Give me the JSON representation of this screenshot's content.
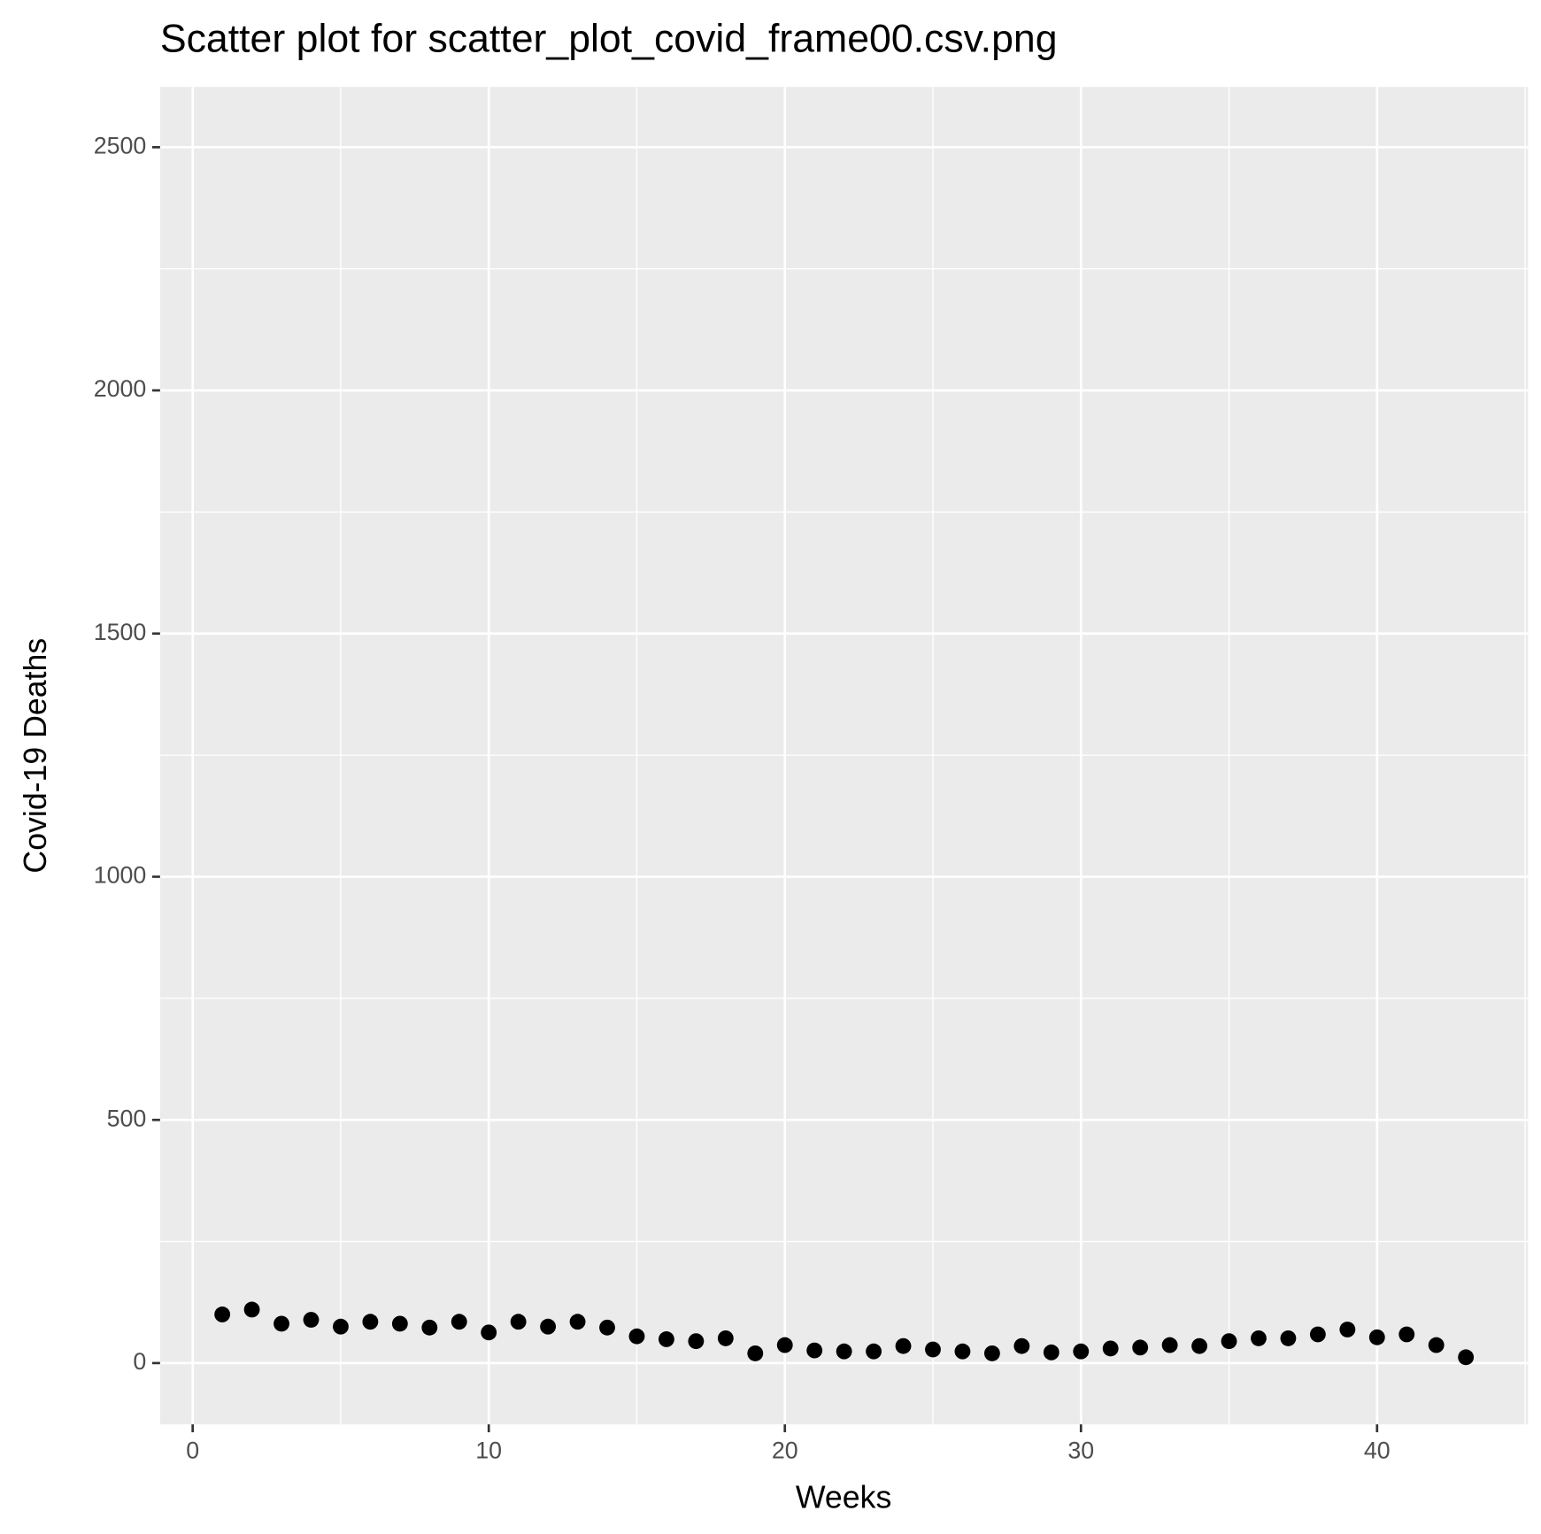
{
  "chart_data": {
    "type": "scatter",
    "title": "Scatter plot for scatter_plot_covid_frame00.csv.png",
    "x_label": "Weeks",
    "y_label": "Covid-19 Deaths",
    "x": [
      1,
      2,
      3,
      4,
      5,
      6,
      7,
      8,
      9,
      10,
      11,
      12,
      13,
      14,
      15,
      16,
      17,
      18,
      19,
      20,
      21,
      22,
      23,
      24,
      25,
      26,
      27,
      28,
      29,
      30,
      31,
      32,
      33,
      34,
      35,
      36,
      37,
      38,
      39,
      40,
      41,
      42,
      43
    ],
    "values": [
      100,
      110,
      81,
      89,
      75,
      85,
      81,
      73,
      85,
      63,
      85,
      75,
      85,
      73,
      55,
      49,
      45,
      51,
      20,
      37,
      26,
      24,
      24,
      35,
      28,
      24,
      20,
      35,
      22,
      24,
      30,
      32,
      37,
      35,
      45,
      51,
      51,
      59,
      69,
      53,
      59,
      37,
      12
    ],
    "color": "#000000",
    "xlim": [
      -1.1,
      45.1
    ],
    "ylim": [
      -126,
      2624
    ],
    "xticks": [
      0,
      10,
      20,
      30,
      40
    ],
    "yticks": [
      0,
      500,
      1000,
      1500,
      2000,
      2500
    ],
    "grid": true
  }
}
